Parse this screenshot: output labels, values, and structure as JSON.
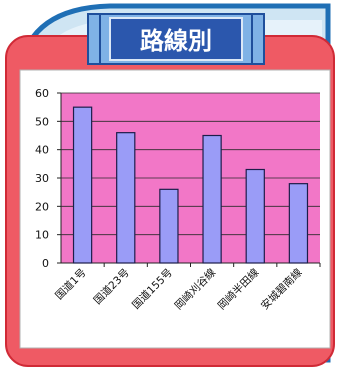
{
  "header": {
    "title": "路線別"
  },
  "colors": {
    "outer_blue": "#1f6fb5",
    "light_blue": "#cfe5f3",
    "panel_red": "#ef5a64",
    "panel_red_stroke": "#d02a36",
    "header_blue": "#2b57ad",
    "header_light": "#7fb2e6",
    "plot_bg": "#f277c7",
    "bar_fill": "#9a9cf7",
    "bar_stroke": "#1d1d4a",
    "axis": "#222222"
  },
  "chart_data": {
    "type": "bar",
    "categories": [
      "国道1号",
      "国道23号",
      "国道155号",
      "岡崎刈谷線",
      "岡崎半田線",
      "安城碧南線"
    ],
    "values": [
      55,
      46,
      26,
      45,
      33,
      28
    ],
    "title": "",
    "xlabel": "",
    "ylabel": "",
    "ylim": [
      0,
      60
    ],
    "yticks": [
      0,
      10,
      20,
      30,
      40,
      50,
      60
    ],
    "grid": true,
    "legend": "none"
  }
}
